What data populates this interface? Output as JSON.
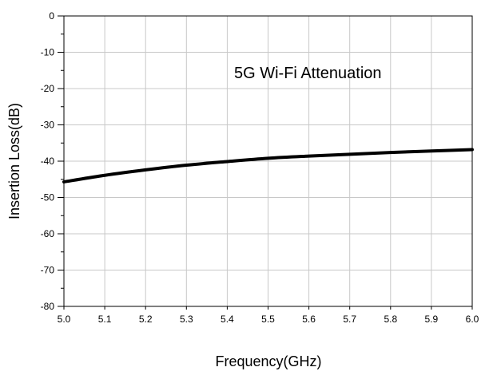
{
  "chart_data": {
    "type": "line",
    "title": "",
    "annotation": "5G Wi-Fi Attenuation",
    "xlabel": "Frequency(GHz)",
    "ylabel": "Insertion Loss(dB)",
    "xlim": [
      5.0,
      6.0
    ],
    "ylim": [
      -80,
      0
    ],
    "x_ticks": [
      "5.0",
      "5.1",
      "5.2",
      "5.3",
      "5.4",
      "5.5",
      "5.6",
      "5.7",
      "5.8",
      "5.9",
      "6.0"
    ],
    "y_ticks": [
      "0",
      "-10",
      "-20",
      "-30",
      "-40",
      "-50",
      "-60",
      "-70",
      "-80"
    ],
    "grid": true,
    "series": [
      {
        "name": "",
        "color": "#000000",
        "x": [
          5.0,
          5.1,
          5.2,
          5.3,
          5.4,
          5.5,
          5.6,
          5.7,
          5.8,
          5.9,
          6.0
        ],
        "y": [
          -45.7,
          -43.9,
          -42.4,
          -41.1,
          -40.1,
          -39.2,
          -38.6,
          -38.1,
          -37.6,
          -37.2,
          -36.8
        ]
      }
    ]
  }
}
